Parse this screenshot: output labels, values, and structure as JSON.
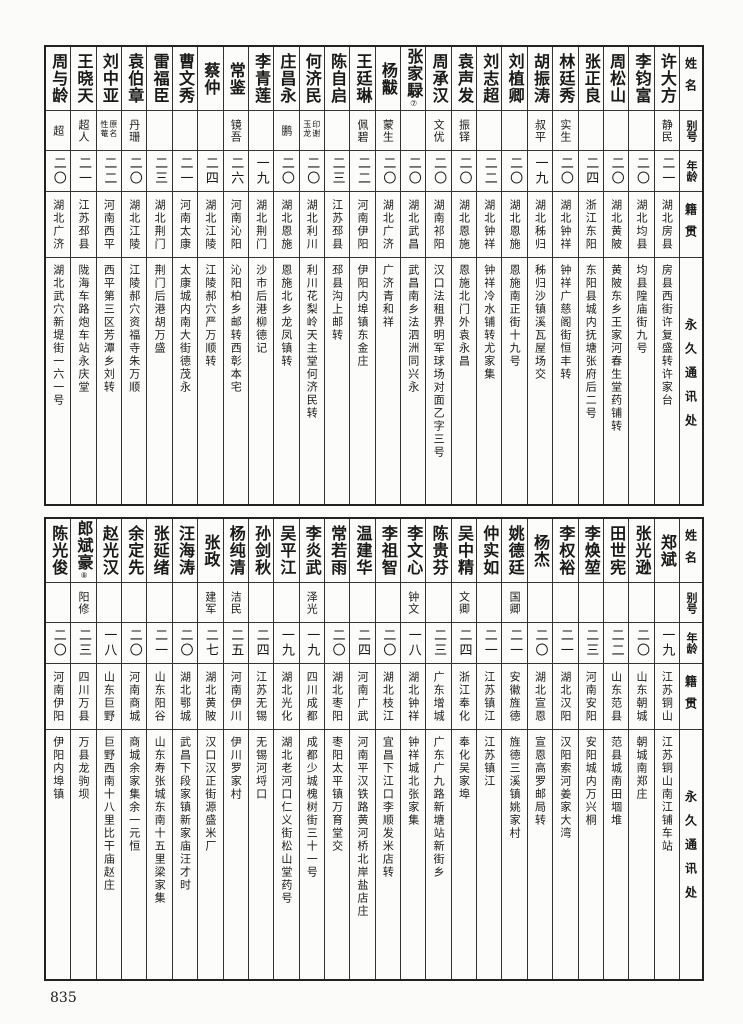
{
  "header": {
    "name": "姓名",
    "alias": "别号",
    "age": "年龄",
    "origin": "籍贯",
    "address": "永久通讯处"
  },
  "tables": [
    {
      "rows": [
        {
          "name": "许大方",
          "alias": "静民",
          "age": "二一",
          "origin": "湖北房县",
          "address": "房县西街许复盛转许家台"
        },
        {
          "name": "李钧富",
          "alias": "",
          "age": "二〇",
          "origin": "湖北均县",
          "address": "均县隍庙街九号"
        },
        {
          "name": "周松山",
          "alias": "",
          "age": "二〇",
          "origin": "湖北黄陂",
          "address": "黄陂东乡王家河春生堂药铺转"
        },
        {
          "name": "张正良",
          "alias": "",
          "age": "二四",
          "origin": "浙江东阳",
          "address": "东阳县城内抚塘张府后二号"
        },
        {
          "name": "林廷秀",
          "alias": "实生",
          "age": "二〇",
          "origin": "湖北钟祥",
          "address": "钟祥广慈阁街恒丰转"
        },
        {
          "name": "胡振涛",
          "alias": "叔平",
          "age": "一九",
          "origin": "湖北秭归",
          "address": "秭归沙镇溪瓦屋场交"
        },
        {
          "name": "刘植卿",
          "alias": "",
          "age": "二〇",
          "origin": "湖北恩施",
          "address": "恩施南正街十九号"
        },
        {
          "name": "刘志超",
          "alias": "",
          "age": "二二",
          "origin": "湖北钟祥",
          "address": "钟祥冷水铺转尤家集"
        },
        {
          "name": "袁声发",
          "alias": "振铎",
          "age": "二〇",
          "origin": "湖北恩施",
          "address": "恩施北门外袁永昌"
        },
        {
          "name": "周承汉",
          "alias": "文优",
          "age": "二〇",
          "origin": "湖南祁阳",
          "address": "汉口法租界明军球场对面乙字三号"
        },
        {
          "name": "张家騄",
          "note": "⑦",
          "alias": "",
          "age": "二〇",
          "origin": "湖北武昌",
          "address": "武昌南乡法泗洲同兴永"
        },
        {
          "name": "杨黻",
          "alias": "蒙生",
          "age": "二〇",
          "origin": "湖北广济",
          "address": "广济青和祥"
        },
        {
          "name": "王廷琳",
          "alias": "佩碧",
          "age": "二二",
          "origin": "河南伊阳",
          "address": "伊阳内埠镇东金庄"
        },
        {
          "name": "陈自启",
          "alias": "",
          "age": "二三",
          "origin": "江苏邳县",
          "address": "邳县沟上邮转"
        },
        {
          "name": "何济民",
          "alias": "印谢玉龙",
          "age": "二〇",
          "origin": "湖北利川",
          "address": "利川花梨岭天主堂何济民转"
        },
        {
          "name": "庄昌永",
          "alias": "鹏",
          "age": "二〇",
          "origin": "湖北恩施",
          "address": "恩施北乡龙凤镇转"
        },
        {
          "name": "李青莲",
          "alias": "",
          "age": "一九",
          "origin": "湖北荆门",
          "address": "沙市后港柳德记"
        },
        {
          "name": "常鉴",
          "alias": "镜吾",
          "age": "二六",
          "origin": "河南沁阳",
          "address": "沁阳柏乡邮转西彰本宅"
        },
        {
          "name": "蔡仲",
          "alias": "",
          "age": "二四",
          "origin": "湖北江陵",
          "address": "江陵郝穴严万顺转"
        },
        {
          "name": "曹文秀",
          "alias": "",
          "age": "二一",
          "origin": "河南太康",
          "address": "太康城内南大街德茂永"
        },
        {
          "name": "雷福臣",
          "alias": "",
          "age": "二三",
          "origin": "湖北荆门",
          "address": "荆门后港胡万盛"
        },
        {
          "name": "袁伯章",
          "alias": "丹珊",
          "age": "二〇",
          "origin": "湖北江陵",
          "address": "江陵郝穴资福寺朱万顺"
        },
        {
          "name": "刘中亚",
          "alias": "原名性菴",
          "age": "二二",
          "origin": "河南西平",
          "address": "西平第三区芳潭乡刘转"
        },
        {
          "name": "王晓天",
          "alias": "超人",
          "age": "二一",
          "origin": "江苏邳县",
          "address": "陇海车路炮车站永庆堂"
        },
        {
          "name": "周与龄",
          "alias": "超",
          "age": "二〇",
          "origin": "湖北广济",
          "address": "湖北武穴新堤街一六一号"
        }
      ]
    },
    {
      "rows": [
        {
          "name": "郑斌",
          "alias": "",
          "age": "一九",
          "origin": "江苏铜山",
          "address": "江苏铜山南江铺车站"
        },
        {
          "name": "张光逊",
          "alias": "",
          "age": "二〇",
          "origin": "山东朝城",
          "address": "朝城南郑庄"
        },
        {
          "name": "田世宪",
          "alias": "",
          "age": "二二",
          "origin": "山东范县",
          "address": "范县城南田堌堆"
        },
        {
          "name": "李焕堃",
          "alias": "",
          "age": "二三",
          "origin": "河南安阳",
          "address": "安阳城内万兴桐"
        },
        {
          "name": "李权裕",
          "alias": "",
          "age": "二一",
          "origin": "湖北汉阳",
          "address": "汉阳索河姜家大湾"
        },
        {
          "name": "杨杰",
          "alias": "",
          "age": "二〇",
          "origin": "湖北宣恩",
          "address": "宣恩高罗邮局转"
        },
        {
          "name": "姚德廷",
          "alias": "国卿",
          "age": "二一",
          "origin": "安徽旌德",
          "address": "旌德三溪镇姚家村"
        },
        {
          "name": "仲实如",
          "alias": "",
          "age": "二一",
          "origin": "江苏镇江",
          "address": "江苏镇江"
        },
        {
          "name": "吴中精",
          "alias": "文卿",
          "age": "二四",
          "origin": "浙江奉化",
          "address": "奉化吴家埠"
        },
        {
          "name": "陈贵芬",
          "alias": "",
          "age": "二三",
          "origin": "广东增城",
          "address": "广东广九路新塘站新街乡"
        },
        {
          "name": "李文心",
          "alias": "钟文",
          "age": "一八",
          "origin": "湖北钟祥",
          "address": "钟祥城北张家集"
        },
        {
          "name": "李祖智",
          "alias": "",
          "age": "二〇",
          "origin": "湖北枝江",
          "address": "宜昌下江口李顺发米店转"
        },
        {
          "name": "温建华",
          "alias": "",
          "age": "二四",
          "origin": "河南广武",
          "address": "河南平汉铁路黄河桥北岸盐店庄"
        },
        {
          "name": "常若雨",
          "alias": "",
          "age": "二〇",
          "origin": "湖北枣阳",
          "address": "枣阳太平镇万育堂交"
        },
        {
          "name": "李炎武",
          "alias": "泽光",
          "age": "一九",
          "origin": "四川成都",
          "address": "成都少城槐树街三十一号"
        },
        {
          "name": "吴平江",
          "alias": "",
          "age": "一九",
          "origin": "湖北光化",
          "address": "湖北老河口仁义街松山堂药号"
        },
        {
          "name": "孙剑秋",
          "alias": "",
          "age": "二四",
          "origin": "江苏无锡",
          "address": "无锡河埒口"
        },
        {
          "name": "杨纯清",
          "alias": "洁民",
          "age": "二五",
          "origin": "河南伊川",
          "address": "伊川罗家村"
        },
        {
          "name": "张政",
          "alias": "建军",
          "age": "二七",
          "origin": "湖北黄陂",
          "address": "汉口汉正街源盛米厂"
        },
        {
          "name": "汪海涛",
          "alias": "",
          "age": "二〇",
          "origin": "湖北鄂城",
          "address": "武昌下段家镇新家庙汪才时"
        },
        {
          "name": "张延绪",
          "alias": "",
          "age": "二一",
          "origin": "山东阳谷",
          "address": "山东寿张城东南十五里梁家集"
        },
        {
          "name": "余定先",
          "alias": "",
          "age": "二〇",
          "origin": "河南商城",
          "address": "商城余家集余一元恒"
        },
        {
          "name": "赵光汉",
          "alias": "",
          "age": "一八",
          "origin": "山东巨野",
          "address": "巨野西南十八里比干庙赵庄"
        },
        {
          "name": "郎斌豪",
          "note": "⑧",
          "alias": "阳修",
          "age": "二三",
          "origin": "四川万县",
          "address": "万县龙驹坝"
        },
        {
          "name": "陈光俊",
          "alias": "",
          "age": "二〇",
          "origin": "河南伊阳",
          "address": "伊阳内埠镇"
        }
      ]
    }
  ],
  "page_number": "835"
}
